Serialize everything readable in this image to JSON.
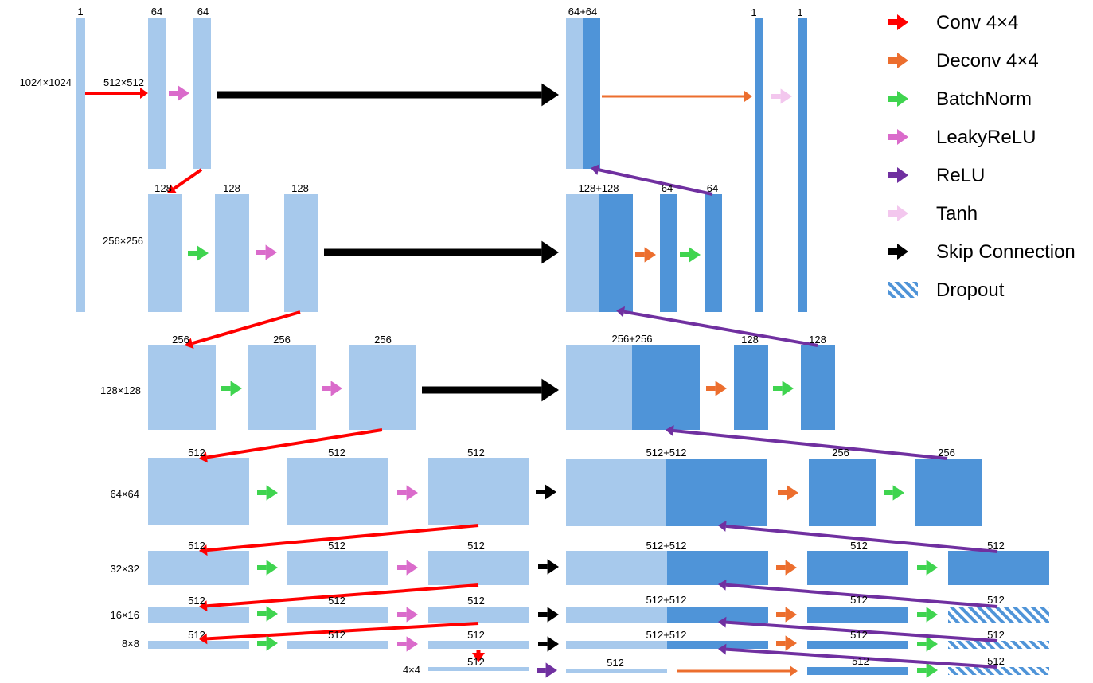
{
  "colors": {
    "encoder": "#a7c9ec",
    "decoder": "#4f94d8",
    "conv": "#ff0000",
    "deconv": "#ec6e2e",
    "batchnorm": "#3fd44f",
    "leakyrelu": "#da6bcb",
    "relu": "#7030a0",
    "tanh": "#f3c7ee",
    "skip": "#000000",
    "dropout": "#4f94d8"
  },
  "resolutions": {
    "r1024": "1024×1024",
    "r512": "512×512",
    "r256": "256×256",
    "r128": "128×128",
    "r64": "64×64",
    "r32": "32×32",
    "r16": "16×16",
    "r8": "8×8",
    "r4": "4×4"
  },
  "channels": {
    "c1": "1",
    "c64": "64",
    "c128": "128",
    "c256": "256",
    "c512": "512",
    "cat64": "64+64",
    "cat128": "128+128",
    "cat256": "256+256",
    "cat512": "512+512"
  },
  "legend": [
    {
      "label": "Conv 4×4",
      "key": "conv"
    },
    {
      "label": "Deconv 4×4",
      "key": "deconv"
    },
    {
      "label": "BatchNorm",
      "key": "batchnorm"
    },
    {
      "label": "LeakyReLU",
      "key": "leakyrelu"
    },
    {
      "label": "ReLU",
      "key": "relu"
    },
    {
      "label": "Tanh",
      "key": "tanh"
    },
    {
      "label": "Skip Connection",
      "key": "skip"
    },
    {
      "label": "Dropout",
      "key": "dropout"
    }
  ]
}
